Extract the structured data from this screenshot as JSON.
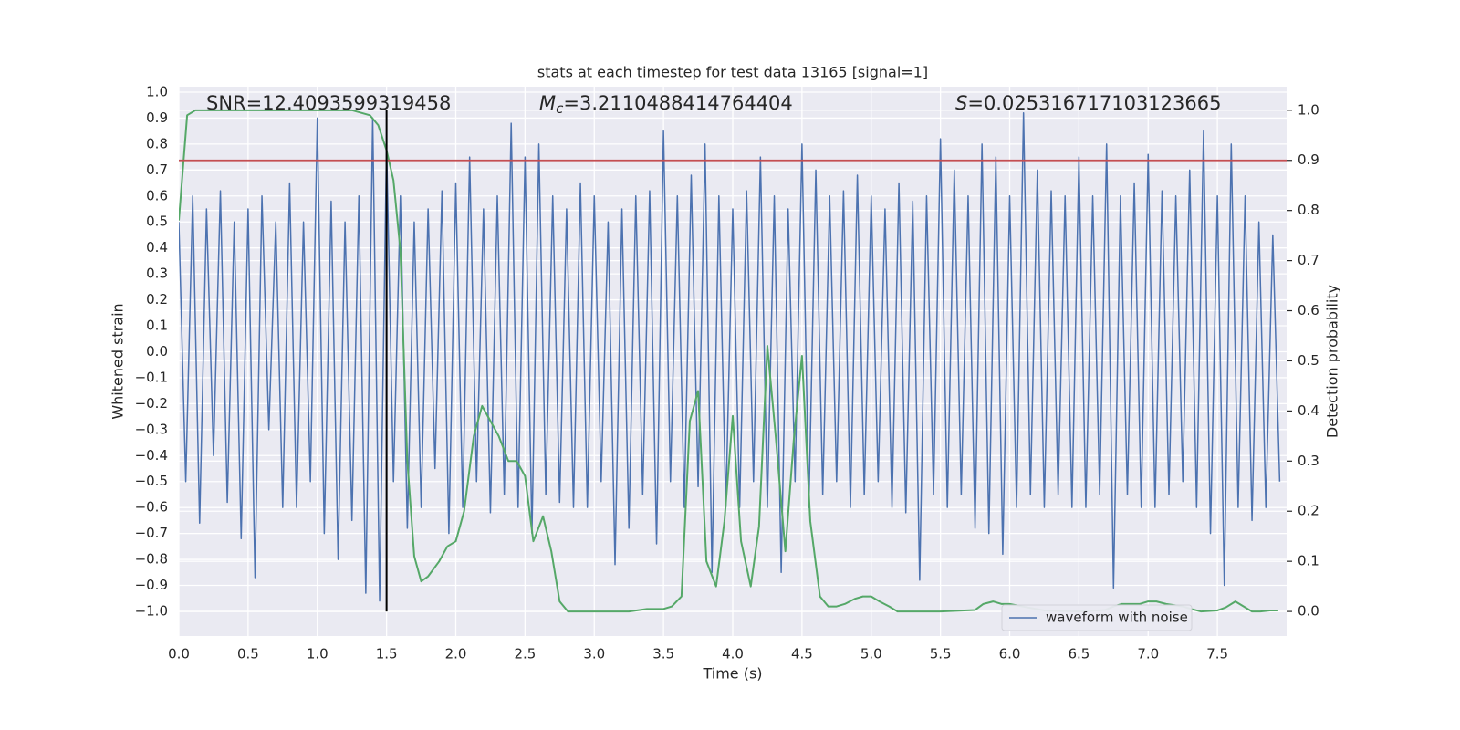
{
  "chart_data": {
    "type": "line",
    "title": "stats at each timestep for test data 13165 [signal=1]",
    "xlabel": "Time (s)",
    "ylabel": "Whitened strain",
    "y2label": "Detection probability",
    "xlim": [
      0,
      8
    ],
    "ylim": [
      -1.095,
      1.021
    ],
    "y2lim": [
      -0.049,
      1.047
    ],
    "xticks": [
      {
        "value": 0,
        "label": "0.0"
      },
      0.5,
      {
        "value": 1,
        "label": "1.0"
      },
      1.5,
      {
        "value": 2,
        "label": "2.0"
      },
      2.5,
      {
        "value": 3,
        "label": "3.0"
      },
      3.5,
      {
        "value": 4,
        "label": "4.0"
      },
      4.5,
      {
        "value": 5,
        "label": "5.0"
      },
      5.5,
      {
        "value": 6,
        "label": "6.0"
      },
      6.5,
      {
        "value": 7,
        "label": "7.0"
      },
      7.5
    ],
    "yticks": [
      {
        "value": 1,
        "label": "1.0"
      },
      0.9,
      0.8,
      0.7,
      0.6,
      0.5,
      0.4,
      0.3,
      0.2,
      0.1,
      {
        "value": 0,
        "label": "0.0"
      },
      {
        "value": -0.1,
        "label": "−0.1"
      },
      {
        "value": -0.2,
        "label": "−0.2"
      },
      {
        "value": -0.3,
        "label": "−0.3"
      },
      {
        "value": -0.4,
        "label": "−0.4"
      },
      {
        "value": -0.5,
        "label": "−0.5"
      },
      {
        "value": -0.6,
        "label": "−0.6"
      },
      {
        "value": -0.7,
        "label": "−0.7"
      },
      {
        "value": -0.8,
        "label": "−0.8"
      },
      {
        "value": -0.9,
        "label": "−0.9"
      },
      {
        "value": -1,
        "label": "−1.0"
      }
    ],
    "y2ticks": [
      {
        "value": 0,
        "label": "0.0"
      },
      0.1,
      0.2,
      0.3,
      0.4,
      0.5,
      0.6,
      0.7,
      0.8,
      0.9,
      {
        "value": 1,
        "label": "1.0"
      }
    ],
    "grid": true,
    "legend": "lower right",
    "annotations": [
      {
        "text": "SNR=12.4093599319458"
      },
      {
        "symbol": "M",
        "subscript": "c",
        "text": "=3.2110488414764404"
      },
      {
        "symbol": "S",
        "text": "=0.025316717103123665"
      }
    ],
    "hlines": [
      {
        "y": 0.9,
        "axis": "y2",
        "color": "#c44e52"
      }
    ],
    "vlines": [
      {
        "x": 1.5,
        "ymin": 0,
        "ymax": 1,
        "axis": "y2",
        "color": "#000000"
      }
    ],
    "series": [
      {
        "name": "waveform with noise",
        "color": "#4c72b0",
        "x": [
          0,
          0.05,
          0.1,
          0.15,
          0.2,
          0.25,
          0.3,
          0.35,
          0.4,
          0.45,
          0.5,
          0.55,
          0.6,
          0.65,
          0.7,
          0.75,
          0.8,
          0.85,
          0.9,
          0.95,
          1,
          1.05,
          1.1,
          1.15,
          1.2,
          1.25,
          1.3,
          1.35,
          1.4,
          1.45,
          1.5,
          1.55,
          1.6,
          1.65,
          1.7,
          1.75,
          1.8,
          1.85,
          1.9,
          1.95,
          2,
          2.05,
          2.1,
          2.15,
          2.2,
          2.25,
          2.3,
          2.35,
          2.4,
          2.45,
          2.5,
          2.55,
          2.6,
          2.65,
          2.7,
          2.75,
          2.8,
          2.85,
          2.9,
          2.95,
          3,
          3.05,
          3.1,
          3.15,
          3.2,
          3.25,
          3.3,
          3.35,
          3.4,
          3.45,
          3.5,
          3.55,
          3.6,
          3.65,
          3.7,
          3.75,
          3.8,
          3.85,
          3.9,
          3.95,
          4,
          4.05,
          4.1,
          4.15,
          4.2,
          4.25,
          4.3,
          4.35,
          4.4,
          4.45,
          4.5,
          4.55,
          4.6,
          4.65,
          4.7,
          4.75,
          4.8,
          4.85,
          4.9,
          4.95,
          5,
          5.05,
          5.1,
          5.15,
          5.2,
          5.25,
          5.3,
          5.35,
          5.4,
          5.45,
          5.5,
          5.55,
          5.6,
          5.65,
          5.7,
          5.75,
          5.8,
          5.85,
          5.9,
          5.95,
          6,
          6.05,
          6.1,
          6.15,
          6.2,
          6.25,
          6.3,
          6.35,
          6.4,
          6.45,
          6.5,
          6.55,
          6.6,
          6.65,
          6.7,
          6.75,
          6.8,
          6.85,
          6.9,
          6.95,
          7,
          7.05,
          7.1,
          7.15,
          7.2,
          7.25,
          7.3,
          7.35,
          7.4,
          7.45,
          7.5,
          7.55,
          7.6,
          7.65,
          7.7,
          7.75,
          7.8,
          7.85,
          7.9,
          7.95
        ],
        "values": [
          0.5,
          -0.5,
          0.6,
          -0.66,
          0.55,
          -0.4,
          0.62,
          -0.58,
          0.5,
          -0.72,
          0.55,
          -0.87,
          0.6,
          -0.3,
          0.5,
          -0.6,
          0.65,
          -0.6,
          0.5,
          -0.5,
          0.9,
          -0.7,
          0.58,
          -0.8,
          0.5,
          -0.65,
          0.6,
          -0.93,
          0.9,
          -0.96,
          0.8,
          -0.5,
          0.6,
          -0.68,
          0.5,
          -0.6,
          0.55,
          -0.45,
          0.62,
          -0.7,
          0.65,
          -0.6,
          0.75,
          -0.5,
          0.55,
          -0.62,
          0.6,
          -0.55,
          0.88,
          -0.6,
          0.75,
          -0.7,
          0.8,
          -0.55,
          0.6,
          -0.58,
          0.55,
          -0.6,
          0.65,
          -0.6,
          0.6,
          -0.5,
          0.5,
          -0.82,
          0.55,
          -0.68,
          0.6,
          -0.55,
          0.62,
          -0.74,
          0.85,
          -0.5,
          0.6,
          -0.6,
          0.68,
          -0.52,
          0.8,
          -0.85,
          0.6,
          -0.6,
          0.55,
          -0.6,
          0.62,
          -0.5,
          0.75,
          -0.6,
          0.6,
          -0.85,
          0.55,
          -0.5,
          0.8,
          -0.6,
          0.7,
          -0.55,
          0.6,
          -0.5,
          0.62,
          -0.6,
          0.68,
          -0.55,
          0.6,
          -0.5,
          0.55,
          -0.6,
          0.65,
          -0.62,
          0.58,
          -0.88,
          0.6,
          -0.55,
          0.82,
          -0.6,
          0.7,
          -0.55,
          0.6,
          -0.68,
          0.8,
          -0.7,
          0.75,
          -0.78,
          0.6,
          -0.6,
          0.92,
          -0.55,
          0.7,
          -0.6,
          0.62,
          -0.55,
          0.6,
          -0.6,
          0.75,
          -0.6,
          0.6,
          -0.55,
          0.8,
          -0.91,
          0.6,
          -0.55,
          0.65,
          -0.6,
          0.76,
          -0.6,
          0.62,
          -0.55,
          0.6,
          -0.5,
          0.7,
          -0.6,
          0.85,
          -0.7,
          0.6,
          -0.9,
          0.8,
          -0.6,
          0.6,
          -0.65,
          0.5,
          -0.6,
          0.45,
          -0.5
        ]
      },
      {
        "color": "#55a868",
        "axis": "y2",
        "x": [
          0,
          0.06,
          0.12,
          0.25,
          0.5,
          0.75,
          1,
          1.25,
          1.38,
          1.44,
          1.5,
          1.55,
          1.6,
          1.65,
          1.7,
          1.75,
          1.8,
          1.88,
          1.94,
          2,
          2.06,
          2.13,
          2.19,
          2.25,
          2.31,
          2.38,
          2.44,
          2.5,
          2.56,
          2.63,
          2.69,
          2.75,
          2.81,
          3,
          3.25,
          3.38,
          3.5,
          3.56,
          3.63,
          3.69,
          3.75,
          3.81,
          3.88,
          3.94,
          4,
          4.06,
          4.13,
          4.19,
          4.25,
          4.31,
          4.38,
          4.44,
          4.5,
          4.56,
          4.63,
          4.69,
          4.75,
          4.81,
          4.88,
          4.94,
          5,
          5.06,
          5.13,
          5.19,
          5.25,
          5.5,
          5.75,
          5.81,
          5.88,
          5.94,
          6,
          6.13,
          6.25,
          6.5,
          6.69,
          6.75,
          6.81,
          6.94,
          7,
          7.06,
          7.13,
          7.25,
          7.31,
          7.38,
          7.5,
          7.56,
          7.63,
          7.69,
          7.75,
          7.81,
          7.88,
          7.94
        ],
        "values": [
          0.78,
          0.99,
          1,
          1,
          1,
          1,
          1,
          1,
          0.99,
          0.97,
          0.92,
          0.86,
          0.72,
          0.3,
          0.11,
          0.06,
          0.07,
          0.1,
          0.13,
          0.14,
          0.2,
          0.35,
          0.41,
          0.38,
          0.35,
          0.3,
          0.3,
          0.27,
          0.14,
          0.19,
          0.12,
          0.02,
          0,
          0,
          0,
          0.005,
          0.005,
          0.01,
          0.03,
          0.38,
          0.44,
          0.1,
          0.05,
          0.18,
          0.39,
          0.14,
          0.05,
          0.17,
          0.53,
          0.35,
          0.12,
          0.34,
          0.51,
          0.18,
          0.03,
          0.01,
          0.01,
          0.015,
          0.025,
          0.03,
          0.03,
          0.02,
          0.01,
          0,
          0,
          0,
          0.003,
          0.015,
          0.02,
          0.015,
          0.015,
          0.008,
          0.002,
          0,
          0.003,
          0.01,
          0.015,
          0.015,
          0.02,
          0.02,
          0.015,
          0.01,
          0.005,
          0,
          0.002,
          0.008,
          0.02,
          0.01,
          0,
          0,
          0.002,
          0.002
        ]
      }
    ]
  }
}
